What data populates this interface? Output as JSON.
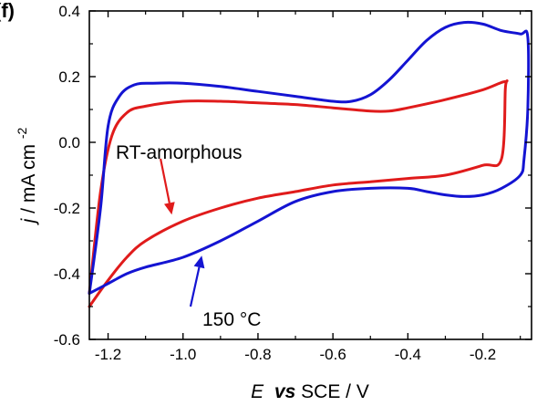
{
  "panel_label": "(f)",
  "colors": {
    "rt": "#e01b1b",
    "c150": "#1414d2",
    "axis": "#000000"
  },
  "chart_data": {
    "type": "line",
    "xlabel": {
      "italic": "E",
      "vs": "vs",
      "rest": " SCE / V"
    },
    "ylabel": {
      "italic": "j",
      "rest": " / mA cm",
      "sup": "-2"
    },
    "xlim": [
      -1.25,
      -0.07
    ],
    "ylim": [
      -0.6,
      0.4
    ],
    "xticks": [
      -1.2,
      -1.0,
      -0.8,
      -0.6,
      -0.4,
      -0.2
    ],
    "xtick_labels": [
      "-1.2",
      "-1.0",
      "-0.8",
      "-0.6",
      "-0.4",
      "-0.2"
    ],
    "yticks": [
      -0.6,
      -0.4,
      -0.2,
      0.0,
      0.2,
      0.4
    ],
    "ytick_labels": [
      "-0.6",
      "-0.4",
      "-0.2",
      "0.0",
      "0.2",
      "0.4"
    ],
    "grid": false,
    "legend": "none",
    "series": [
      {
        "name": "RT-amorphous",
        "color": "#e01b1b",
        "x": [
          -1.25,
          -1.22,
          -1.19,
          -1.15,
          -1.1,
          -1.0,
          -0.9,
          -0.8,
          -0.7,
          -0.6,
          -0.5,
          -0.45,
          -0.4,
          -0.3,
          -0.2,
          -0.14,
          -0.14,
          -0.15,
          -0.2,
          -0.3,
          -0.4,
          -0.5,
          -0.6,
          -0.7,
          -0.8,
          -0.9,
          -1.0,
          -1.1,
          -1.15,
          -1.2,
          -1.25
        ],
        "y": [
          -0.46,
          -0.15,
          0.02,
          0.09,
          0.11,
          0.125,
          0.125,
          0.12,
          0.115,
          0.105,
          0.095,
          0.095,
          0.105,
          0.13,
          0.16,
          0.185,
          0.16,
          -0.05,
          -0.07,
          -0.1,
          -0.11,
          -0.12,
          -0.13,
          -0.15,
          -0.17,
          -0.2,
          -0.24,
          -0.3,
          -0.35,
          -0.42,
          -0.5
        ]
      },
      {
        "name": "150 °C",
        "color": "#1414d2",
        "x": [
          -1.25,
          -1.22,
          -1.2,
          -1.17,
          -1.13,
          -1.08,
          -1.0,
          -0.9,
          -0.8,
          -0.7,
          -0.6,
          -0.55,
          -0.5,
          -0.45,
          -0.4,
          -0.35,
          -0.3,
          -0.25,
          -0.2,
          -0.15,
          -0.1,
          -0.08,
          -0.08,
          -0.09,
          -0.1,
          -0.15,
          -0.2,
          -0.25,
          -0.3,
          -0.35,
          -0.4,
          -0.5,
          -0.6,
          -0.7,
          -0.8,
          -0.9,
          -1.0,
          -1.1,
          -1.15,
          -1.2,
          -1.25
        ],
        "y": [
          -0.46,
          -0.2,
          0.05,
          0.14,
          0.175,
          0.18,
          0.18,
          0.17,
          0.155,
          0.14,
          0.125,
          0.125,
          0.145,
          0.19,
          0.25,
          0.31,
          0.35,
          0.365,
          0.36,
          0.34,
          0.33,
          0.32,
          0.1,
          -0.05,
          -0.1,
          -0.14,
          -0.16,
          -0.165,
          -0.16,
          -0.15,
          -0.14,
          -0.14,
          -0.15,
          -0.18,
          -0.24,
          -0.3,
          -0.35,
          -0.38,
          -0.4,
          -0.43,
          -0.46
        ]
      }
    ],
    "annotations": [
      {
        "text": "RT-amorphous",
        "color": "#e01b1b",
        "arrow_from": [
          -1.06,
          -0.05
        ],
        "arrow_to": [
          -1.03,
          -0.22
        ]
      },
      {
        "text": "150 °C",
        "color": "#1414d2",
        "arrow_from": [
          -0.98,
          -0.5
        ],
        "arrow_to": [
          -0.95,
          -0.345
        ]
      }
    ]
  }
}
